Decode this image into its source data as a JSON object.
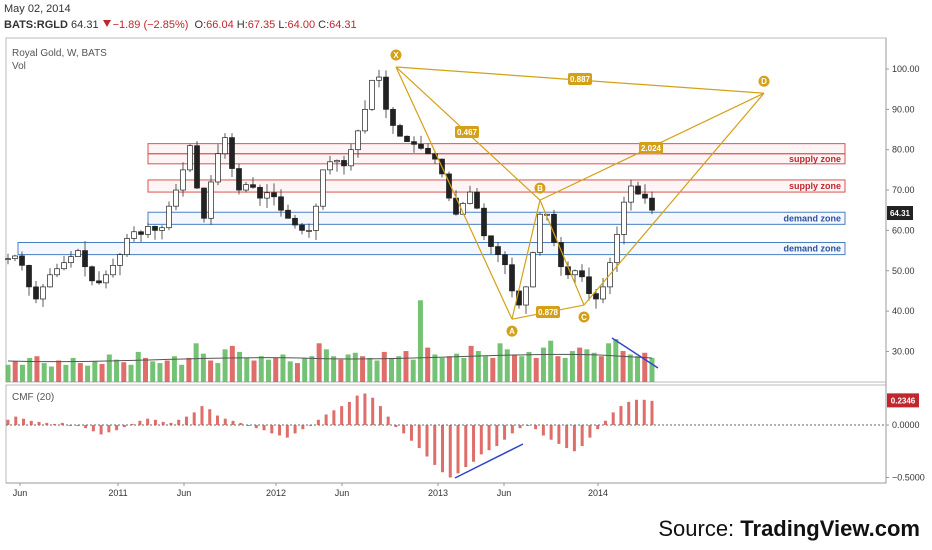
{
  "header": {
    "date": "May 02, 2014",
    "symbol": "BATS:RGLD",
    "last": "64.31",
    "change": "−1.89 (−2.85%)",
    "open_label": "O:",
    "open": "66.04",
    "high_label": "H:",
    "high": "67.35",
    "low_label": "L:",
    "low": "64.00",
    "close_label": "C:",
    "close": "64.31"
  },
  "legend": {
    "title": "Royal Gold, W, BATS",
    "vol": "Vol",
    "cmf": "CMF (20)"
  },
  "source": {
    "prefix": "Source: ",
    "brand": "TradingView.com"
  },
  "colors": {
    "up": "#5cb85c",
    "down": "#d9534f",
    "pattern": "#d4a017",
    "supply": "#d9534f",
    "demand": "#4a7fc1",
    "trend": "#3344cc"
  },
  "chart_data": {
    "type": "candlestick",
    "title": "Royal Gold, W, BATS",
    "price_axis": {
      "ticks": [
        "100.00",
        "90.00",
        "80.00",
        "70.00",
        "60.00",
        "50.00",
        "40.00",
        "30.00"
      ],
      "ylim": [
        22,
        104
      ]
    },
    "cmf_axis": {
      "ticks": [
        "0.0000",
        "−0.5000"
      ],
      "ylim": [
        -0.55,
        0.35
      ],
      "last_label": "0.2346",
      "last": 0.2346
    },
    "last_price_label": "64.31",
    "x_ticks": [
      "Jun",
      "2011",
      "Jun",
      "2012",
      "Jun",
      "2013",
      "Jun",
      "2014"
    ],
    "price_path": [
      [
        0,
        53
      ],
      [
        6,
        54
      ],
      [
        12,
        46
      ],
      [
        16,
        43
      ],
      [
        24,
        49
      ],
      [
        32,
        52
      ],
      [
        40,
        55
      ],
      [
        46,
        49
      ],
      [
        50,
        46
      ],
      [
        58,
        50
      ],
      [
        64,
        54
      ],
      [
        70,
        60
      ],
      [
        76,
        59
      ],
      [
        82,
        62
      ],
      [
        86,
        58
      ],
      [
        92,
        66
      ],
      [
        98,
        72
      ],
      [
        104,
        81
      ],
      [
        106,
        74
      ],
      [
        110,
        67
      ],
      [
        112,
        63
      ],
      [
        116,
        72
      ],
      [
        120,
        79
      ],
      [
        124,
        83
      ],
      [
        126,
        78
      ],
      [
        132,
        70
      ],
      [
        138,
        72
      ],
      [
        144,
        68
      ],
      [
        150,
        70
      ],
      [
        156,
        65
      ],
      [
        162,
        62
      ],
      [
        168,
        60
      ],
      [
        172,
        60
      ],
      [
        176,
        66
      ],
      [
        180,
        75
      ],
      [
        186,
        78
      ],
      [
        192,
        76
      ],
      [
        198,
        82
      ],
      [
        204,
        90
      ],
      [
        209,
        99
      ],
      [
        212,
        98
      ],
      [
        216,
        90
      ],
      [
        222,
        84
      ],
      [
        228,
        82
      ],
      [
        234,
        81
      ],
      [
        240,
        79
      ],
      [
        246,
        77
      ],
      [
        252,
        68
      ],
      [
        256,
        64
      ],
      [
        262,
        68
      ],
      [
        266,
        71
      ],
      [
        270,
        60
      ],
      [
        276,
        56
      ],
      [
        282,
        53
      ],
      [
        286,
        50
      ],
      [
        290,
        40
      ],
      [
        294,
        43
      ],
      [
        298,
        49
      ],
      [
        302,
        60
      ],
      [
        306,
        68
      ],
      [
        310,
        60
      ],
      [
        316,
        51
      ],
      [
        322,
        48
      ],
      [
        326,
        52
      ],
      [
        330,
        45
      ],
      [
        336,
        43
      ],
      [
        340,
        46
      ],
      [
        344,
        52
      ],
      [
        348,
        59
      ],
      [
        352,
        67
      ],
      [
        356,
        71
      ],
      [
        360,
        69
      ],
      [
        364,
        68
      ],
      [
        368,
        65
      ]
    ],
    "vol_heights": [
      0.2,
      0.24,
      0.2,
      0.28,
      0.3,
      0.22,
      0.18,
      0.25,
      0.2,
      0.28,
      0.22,
      0.19,
      0.24,
      0.21,
      0.32,
      0.26,
      0.23,
      0.2,
      0.35,
      0.28,
      0.24,
      0.22,
      0.25,
      0.3,
      0.2,
      0.28,
      0.45,
      0.33,
      0.25,
      0.22,
      0.38,
      0.42,
      0.35,
      0.28,
      0.25,
      0.3,
      0.26,
      0.28,
      0.32,
      0.24,
      0.22,
      0.28,
      0.3,
      0.45,
      0.38,
      0.3,
      0.26,
      0.32,
      0.34,
      0.3,
      0.28,
      0.25,
      0.35,
      0.28,
      0.3,
      0.36,
      0.26,
      0.95,
      0.4,
      0.32,
      0.28,
      0.3,
      0.33,
      0.28,
      0.42,
      0.36,
      0.3,
      0.28,
      0.45,
      0.38,
      0.32,
      0.3,
      0.35,
      0.28,
      0.4,
      0.48,
      0.3,
      0.28,
      0.36,
      0.4,
      0.38,
      0.34,
      0.3,
      0.45,
      0.5,
      0.36,
      0.32,
      0.3,
      0.34,
      0.28
    ],
    "cmf_values": [
      0.05,
      0.08,
      0.06,
      0.04,
      0.03,
      0.02,
      0.01,
      0.02,
      0.0,
      -0.01,
      -0.03,
      -0.06,
      -0.09,
      -0.07,
      -0.05,
      -0.02,
      0.01,
      0.04,
      0.06,
      0.05,
      0.03,
      0.02,
      0.05,
      0.08,
      0.12,
      0.18,
      0.15,
      0.09,
      0.06,
      0.04,
      0.02,
      0.0,
      -0.03,
      -0.05,
      -0.08,
      -0.1,
      -0.12,
      -0.08,
      -0.04,
      0.0,
      0.05,
      0.1,
      0.14,
      0.18,
      0.22,
      0.28,
      0.3,
      0.26,
      0.18,
      0.08,
      -0.02,
      -0.08,
      -0.15,
      -0.22,
      -0.3,
      -0.38,
      -0.45,
      -0.5,
      -0.46,
      -0.4,
      -0.35,
      -0.28,
      -0.24,
      -0.2,
      -0.14,
      -0.08,
      -0.03,
      0.0,
      -0.04,
      -0.1,
      -0.14,
      -0.18,
      -0.22,
      -0.25,
      -0.2,
      -0.12,
      -0.04,
      0.04,
      0.12,
      0.18,
      0.22,
      0.24,
      0.24,
      0.23
    ],
    "zones": [
      {
        "label": "supply zone",
        "kind": "supply",
        "low": 79,
        "high": 81.5
      },
      {
        "label": "supply zone",
        "kind": "supply",
        "low": 76.5,
        "high": 79
      },
      {
        "label": "supply zone",
        "kind": "supply",
        "low": 69.5,
        "high": 72.5
      },
      {
        "label": "demand zone",
        "kind": "demand",
        "low": 61.5,
        "high": 64.5
      },
      {
        "label": "demand zone",
        "kind": "demand",
        "low": 54,
        "high": 57
      }
    ],
    "pattern_points": [
      {
        "label": "X",
        "price": 100.5
      },
      {
        "label": "A",
        "price": 38
      },
      {
        "label": "B",
        "price": 67.5
      },
      {
        "label": "C",
        "price": 41.5
      },
      {
        "label": "D",
        "price": 94
      }
    ],
    "ratios": [
      "0.887",
      "0.467",
      "2.024",
      "0.878"
    ]
  }
}
